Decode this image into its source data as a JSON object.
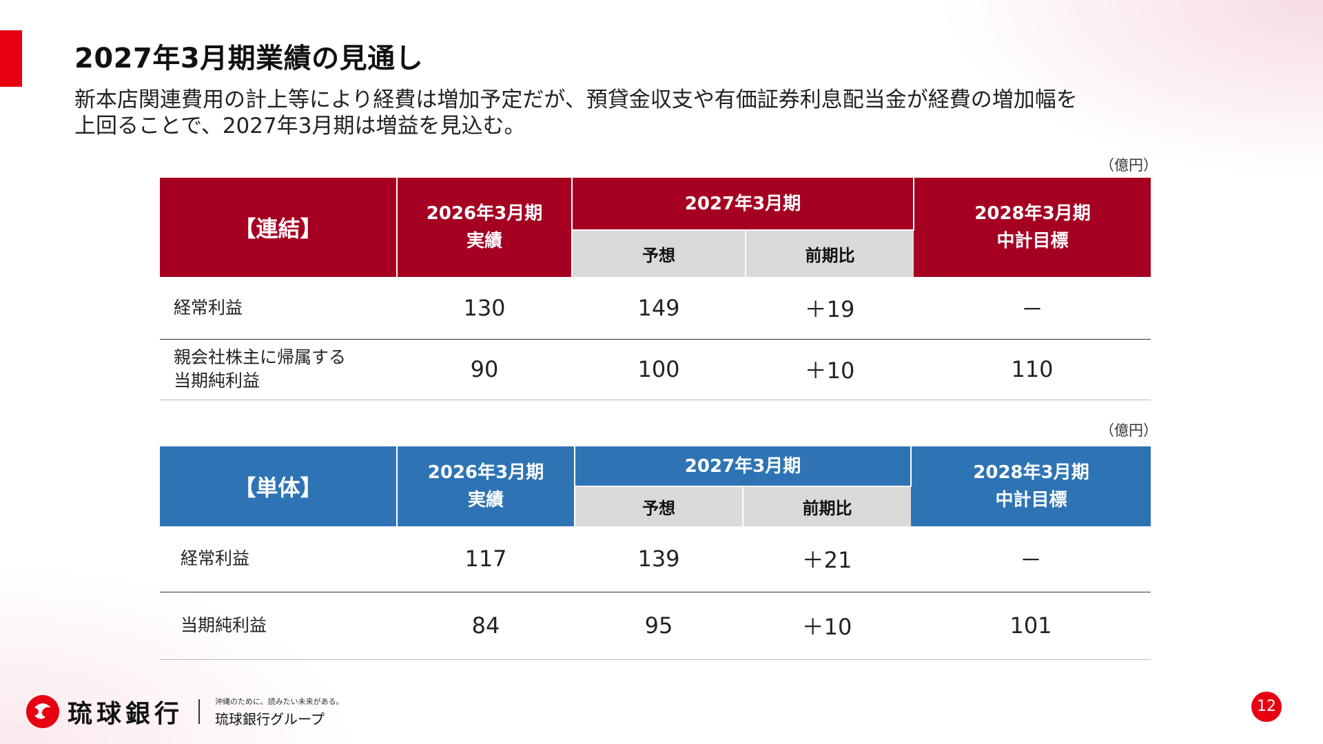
{
  "page": {
    "title": "2027年3月期業績の見通し",
    "lead_line1": "新本店関連費用の計上等により経費は増加予定だが、預貸金収支や有価証券利息配当金が経費の増加幅を",
    "lead_line2": "上回ることで、2027年3月期は増益を見込む。",
    "page_number": "12"
  },
  "colors": {
    "accent_red": "#e60012",
    "table1_header": "#a50022",
    "table2_header": "#2e74b5"
  },
  "consolidated": {
    "unit": "（億円）",
    "header": {
      "segment": "【連結】",
      "col1_line1": "2026年3月期",
      "col1_line2": "実績",
      "col2_group": "2027年3月期",
      "col2_a": "予想",
      "col2_b": "前期比",
      "col3_line1": "2028年3月期",
      "col3_line2": "中計目標"
    },
    "rows": [
      {
        "label_line1": "経常利益",
        "label_line2": "",
        "actual": "130",
        "forecast": "149",
        "change": "＋19",
        "target": "－"
      },
      {
        "label_line1": "親会社株主に帰属する",
        "label_line2": "当期純利益",
        "actual": "90",
        "forecast": "100",
        "change": "＋10",
        "target": "110"
      }
    ]
  },
  "standalone": {
    "unit": "（億円）",
    "header": {
      "segment": "【単体】",
      "col1_line1": "2026年3月期",
      "col1_line2": "実績",
      "col2_group": "2027年3月期",
      "col2_a": "予想",
      "col2_b": "前期比",
      "col3_line1": "2028年3月期",
      "col3_line2": "中計目標"
    },
    "rows": [
      {
        "label": "経常利益",
        "actual": "117",
        "forecast": "139",
        "change": "＋21",
        "target": "－"
      },
      {
        "label": "当期純利益",
        "actual": "84",
        "forecast": "95",
        "change": "＋10",
        "target": "101"
      }
    ]
  },
  "footer": {
    "logo_icon": "ryukyu-bank-logo-icon",
    "bank_name": "琉球銀行",
    "tagline": "沖縄のために、読みたい未来がある。",
    "group_name": "琉球銀行グループ"
  }
}
